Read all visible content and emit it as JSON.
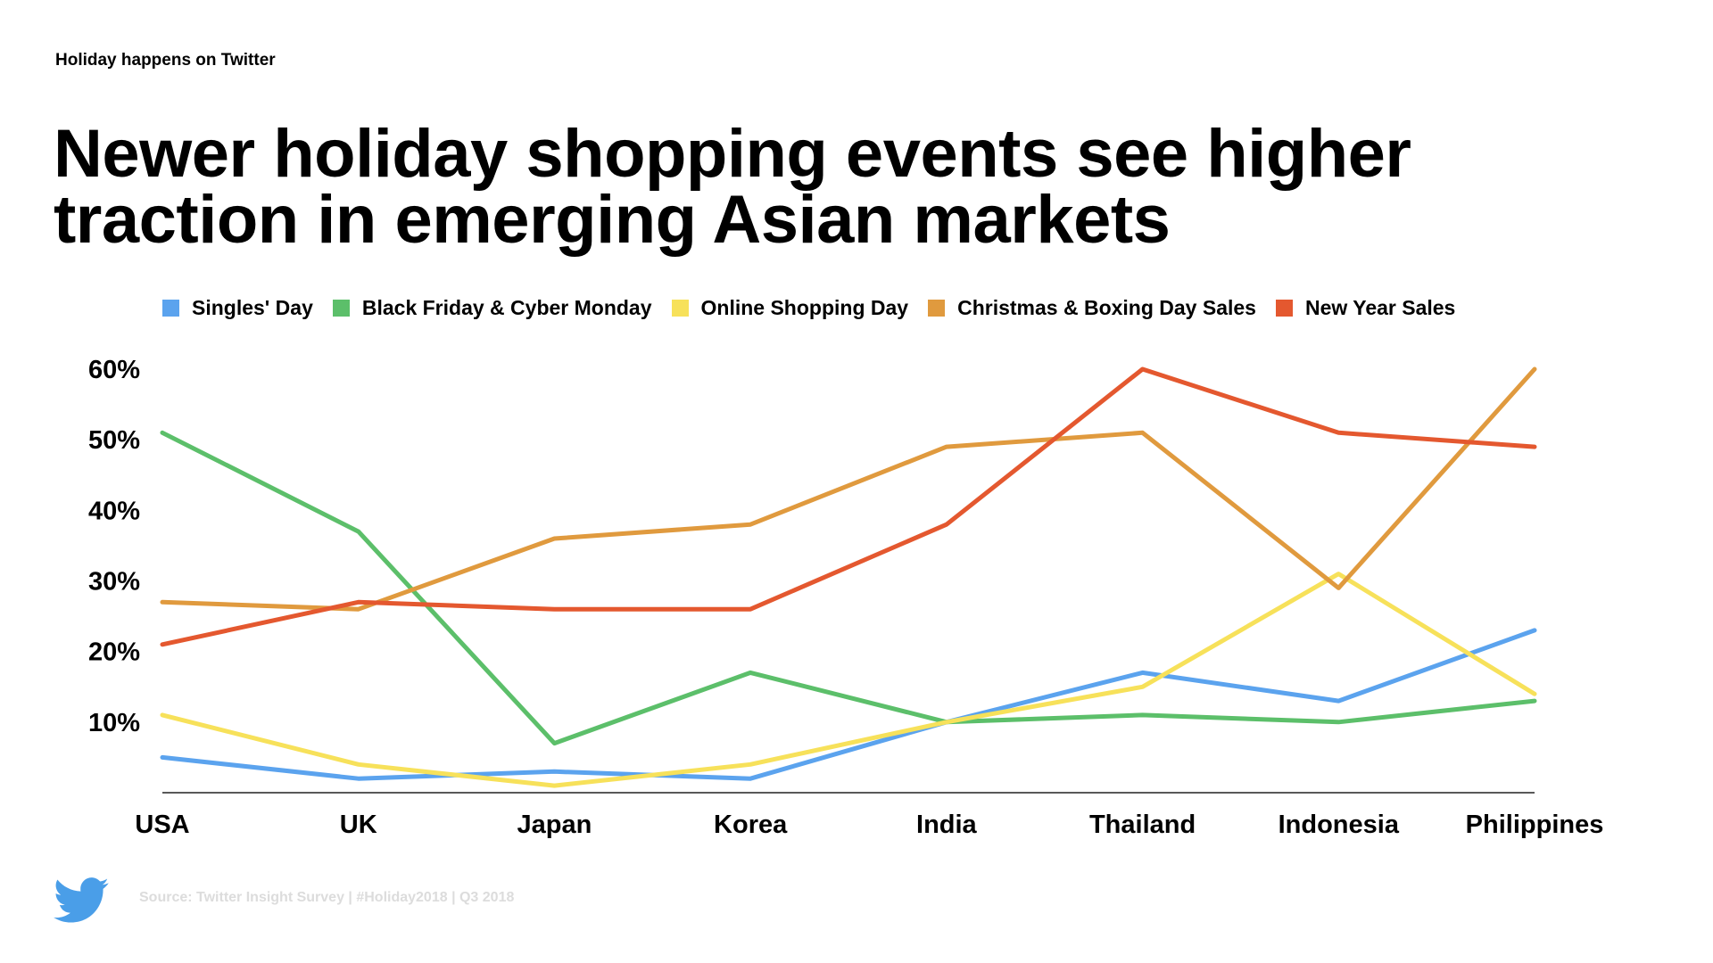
{
  "slide": {
    "kicker": "Holiday happens on Twitter",
    "headline_line1": "Newer holiday shopping events see higher",
    "headline_line2": "traction in emerging Asian markets",
    "source": "Source: Twitter Insight Survey | #Holiday2018 | Q3 2018",
    "logo_icon": "twitter-bird-icon",
    "logo_color": "#4a9ee8"
  },
  "chart_data": {
    "type": "line",
    "title": "Newer holiday shopping events see higher traction in emerging Asian markets",
    "xlabel": "",
    "ylabel": "",
    "categories": [
      "USA",
      "UK",
      "Japan",
      "Korea",
      "India",
      "Thailand",
      "Indonesia",
      "Philippines"
    ],
    "ylim": [
      0,
      60
    ],
    "yticks": [
      10,
      20,
      30,
      40,
      50,
      60
    ],
    "ytick_labels": [
      "10%",
      "20%",
      "30%",
      "40%",
      "50%",
      "60%"
    ],
    "grid": false,
    "legend_position": "top",
    "series": [
      {
        "name": "Singles' Day",
        "color": "#5ba3ee",
        "values": [
          5,
          2,
          3,
          2,
          10,
          17,
          13,
          23
        ]
      },
      {
        "name": "Black Friday & Cyber Monday",
        "color": "#5cbf6a",
        "values": [
          51,
          37,
          7,
          17,
          10,
          11,
          10,
          13
        ]
      },
      {
        "name": "Online Shopping Day",
        "color": "#f7e15a",
        "values": [
          11,
          4,
          1,
          4,
          10,
          15,
          31,
          14
        ]
      },
      {
        "name": "Christmas & Boxing Day Sales",
        "color": "#e09a3e",
        "values": [
          27,
          26,
          36,
          38,
          49,
          51,
          29,
          60
        ]
      },
      {
        "name": "New Year Sales",
        "color": "#e4582f",
        "values": [
          21,
          27,
          26,
          26,
          38,
          60,
          51,
          49
        ]
      }
    ]
  }
}
